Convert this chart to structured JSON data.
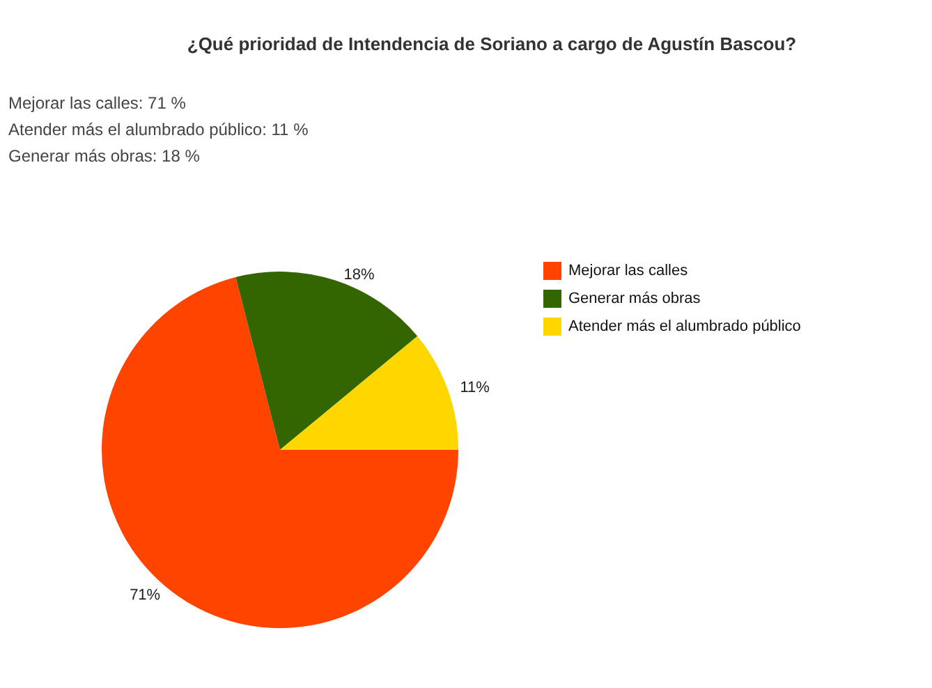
{
  "chart_data": {
    "type": "pie",
    "title": "¿Qué prioridad de Intendencia de Soriano a cargo de Agustín Bascou?",
    "annotations": [
      "Mejorar las calles: 71 %",
      "Atender más el alumbrado público: 11 %",
      "Generar más obras: 18 %"
    ],
    "categories": [
      "Mejorar las calles",
      "Generar más obras",
      "Atender más el alumbrado público"
    ],
    "values": [
      71,
      18,
      11
    ],
    "colors": [
      "#ff4400",
      "#336600",
      "#ffd700"
    ],
    "value_labels": [
      "71%",
      "18%",
      "11%"
    ],
    "legend": "right"
  }
}
